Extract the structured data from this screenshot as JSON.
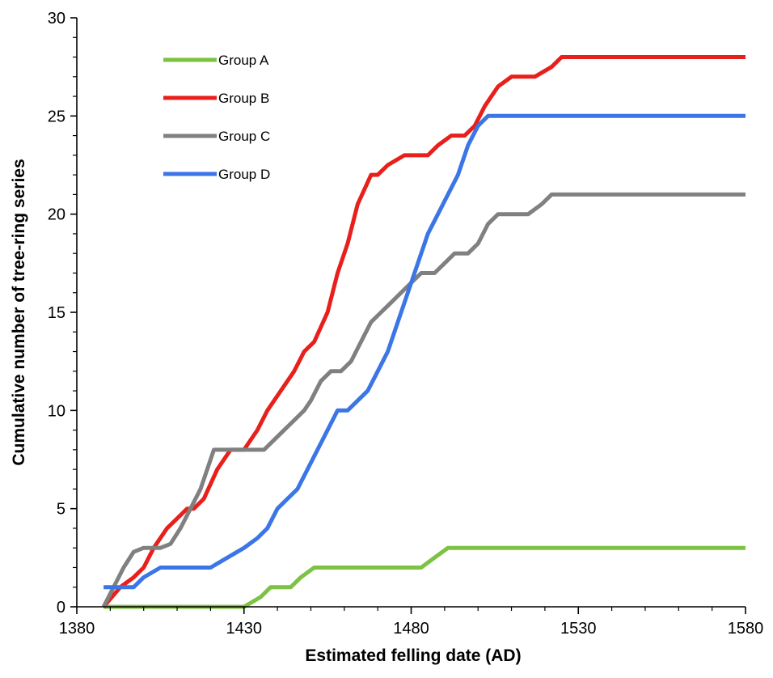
{
  "chart_data": {
    "type": "line",
    "xlabel": "Estimated felling date (AD)",
    "ylabel": "Cumulative number of tree-ring series",
    "xlim": [
      1380,
      1580
    ],
    "ylim": [
      0,
      30
    ],
    "xticks": [
      1380,
      1430,
      1480,
      1530,
      1580
    ],
    "yticks": [
      0,
      5,
      10,
      15,
      20,
      25,
      30
    ],
    "xtick_labels": [
      "1380",
      "1430",
      "1480",
      "1530",
      "1580"
    ],
    "ytick_labels": [
      "0",
      "5",
      "10",
      "15",
      "20",
      "25",
      "30"
    ],
    "grid": false,
    "legend_position": "top-left",
    "series": [
      {
        "name": "Group A",
        "color": "#7dc242",
        "points": [
          [
            1388,
            0
          ],
          [
            1402,
            0
          ],
          [
            1415,
            0
          ],
          [
            1430,
            0
          ],
          [
            1435,
            0.5
          ],
          [
            1438,
            1
          ],
          [
            1444,
            1
          ],
          [
            1447,
            1.5
          ],
          [
            1451,
            2
          ],
          [
            1462,
            2
          ],
          [
            1470,
            2
          ],
          [
            1483,
            2
          ],
          [
            1487,
            2.5
          ],
          [
            1491,
            3
          ],
          [
            1505,
            3
          ],
          [
            1520,
            3
          ],
          [
            1540,
            3
          ],
          [
            1560,
            3
          ],
          [
            1580,
            3
          ]
        ]
      },
      {
        "name": "Group B",
        "color": "#e8201c",
        "points": [
          [
            1388,
            0
          ],
          [
            1393,
            1
          ],
          [
            1397,
            1.5
          ],
          [
            1400,
            2
          ],
          [
            1403,
            3
          ],
          [
            1407,
            4
          ],
          [
            1410,
            4.5
          ],
          [
            1413,
            5
          ],
          [
            1415,
            5
          ],
          [
            1418,
            5.5
          ],
          [
            1422,
            7
          ],
          [
            1426,
            8
          ],
          [
            1430,
            8
          ],
          [
            1434,
            9
          ],
          [
            1437,
            10
          ],
          [
            1441,
            11
          ],
          [
            1445,
            12
          ],
          [
            1448,
            13
          ],
          [
            1451,
            13.5
          ],
          [
            1455,
            15
          ],
          [
            1458,
            17
          ],
          [
            1461,
            18.5
          ],
          [
            1464,
            20.5
          ],
          [
            1468,
            22
          ],
          [
            1470,
            22
          ],
          [
            1473,
            22.5
          ],
          [
            1478,
            23
          ],
          [
            1485,
            23
          ],
          [
            1488,
            23.5
          ],
          [
            1492,
            24
          ],
          [
            1496,
            24
          ],
          [
            1499,
            24.5
          ],
          [
            1502,
            25.5
          ],
          [
            1506,
            26.5
          ],
          [
            1510,
            27
          ],
          [
            1517,
            27
          ],
          [
            1522,
            27.5
          ],
          [
            1525,
            28
          ],
          [
            1580,
            28
          ]
        ]
      },
      {
        "name": "Group C",
        "color": "#808080",
        "points": [
          [
            1388,
            0
          ],
          [
            1391,
            1
          ],
          [
            1394,
            2
          ],
          [
            1397,
            2.8
          ],
          [
            1400,
            3
          ],
          [
            1405,
            3
          ],
          [
            1408,
            3.2
          ],
          [
            1411,
            4
          ],
          [
            1414,
            5
          ],
          [
            1417,
            6
          ],
          [
            1419,
            7
          ],
          [
            1421,
            8
          ],
          [
            1425,
            8
          ],
          [
            1433,
            8
          ],
          [
            1436,
            8
          ],
          [
            1439,
            8.5
          ],
          [
            1442,
            9
          ],
          [
            1445,
            9.5
          ],
          [
            1448,
            10
          ],
          [
            1450,
            10.5
          ],
          [
            1453,
            11.5
          ],
          [
            1456,
            12
          ],
          [
            1459,
            12
          ],
          [
            1462,
            12.5
          ],
          [
            1465,
            13.5
          ],
          [
            1468,
            14.5
          ],
          [
            1471,
            15
          ],
          [
            1474,
            15.5
          ],
          [
            1477,
            16
          ],
          [
            1480,
            16.5
          ],
          [
            1483,
            17
          ],
          [
            1487,
            17
          ],
          [
            1490,
            17.5
          ],
          [
            1493,
            18
          ],
          [
            1497,
            18
          ],
          [
            1500,
            18.5
          ],
          [
            1503,
            19.5
          ],
          [
            1506,
            20
          ],
          [
            1515,
            20
          ],
          [
            1519,
            20.5
          ],
          [
            1522,
            21
          ],
          [
            1580,
            21
          ]
        ]
      },
      {
        "name": "Group D",
        "color": "#3b75e6",
        "points": [
          [
            1388,
            1
          ],
          [
            1393,
            1
          ],
          [
            1397,
            1
          ],
          [
            1400,
            1.5
          ],
          [
            1405,
            2
          ],
          [
            1410,
            2
          ],
          [
            1420,
            2
          ],
          [
            1425,
            2.5
          ],
          [
            1430,
            3
          ],
          [
            1434,
            3.5
          ],
          [
            1437,
            4
          ],
          [
            1440,
            5
          ],
          [
            1443,
            5.5
          ],
          [
            1446,
            6
          ],
          [
            1449,
            7
          ],
          [
            1452,
            8
          ],
          [
            1455,
            9
          ],
          [
            1458,
            10
          ],
          [
            1461,
            10
          ],
          [
            1464,
            10.5
          ],
          [
            1467,
            11
          ],
          [
            1470,
            12
          ],
          [
            1473,
            13
          ],
          [
            1476,
            14.5
          ],
          [
            1479,
            16
          ],
          [
            1482,
            17.5
          ],
          [
            1485,
            19
          ],
          [
            1488,
            20
          ],
          [
            1491,
            21
          ],
          [
            1494,
            22
          ],
          [
            1497,
            23.5
          ],
          [
            1500,
            24.5
          ],
          [
            1503,
            25
          ],
          [
            1510,
            25
          ],
          [
            1520,
            25
          ],
          [
            1530,
            25
          ],
          [
            1580,
            25
          ]
        ]
      }
    ]
  }
}
